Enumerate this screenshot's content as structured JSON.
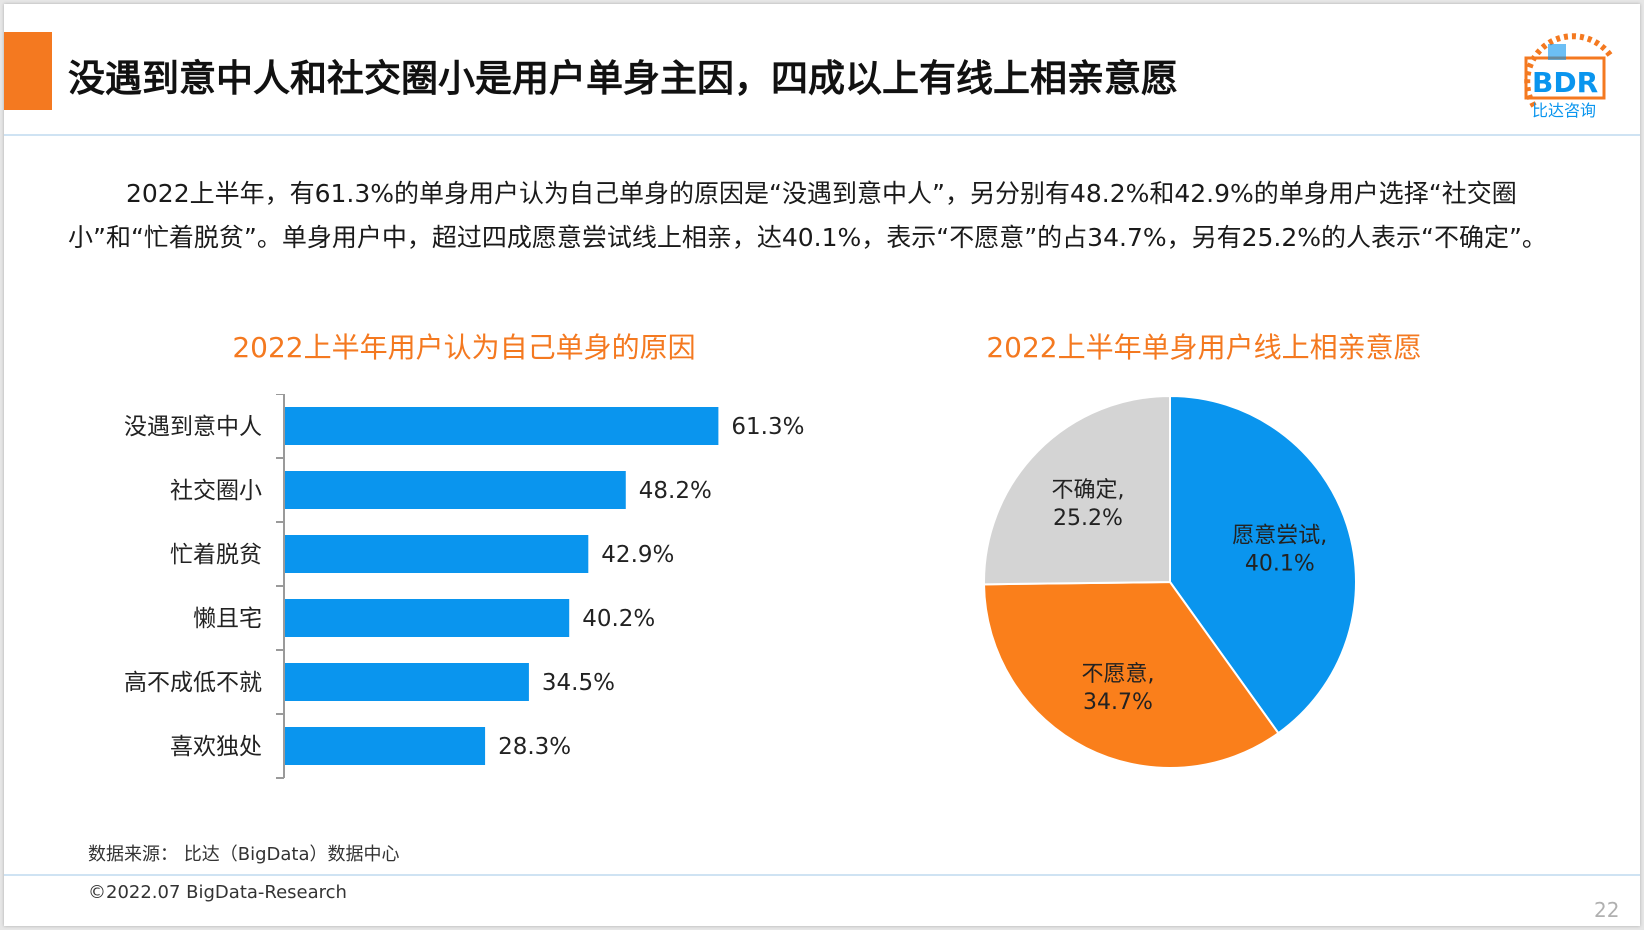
{
  "header": {
    "title": "没遇到意中人和社交圈小是用户单身主因，四成以上有线上相亲意愿",
    "logo_text": "BDR",
    "logo_subtext": "比达咨询"
  },
  "intro_text": "2022上半年，有61.3%的单身用户认为自己单身的原因是“没遇到意中人”，另分别有48.2%和42.9%的单身用户选择“社交圈小”和“忙着脱贫”。单身用户中，超过四成愿意尝试线上相亲，达40.1%，表示“不愿意”的占34.7%，另有25.2%的人表示“不确定”。",
  "chart_data": [
    {
      "type": "bar",
      "orientation": "horizontal",
      "title": "2022上半年用户认为自己单身的原因",
      "categories": [
        "没遇到意中人",
        "社交圈小",
        "忙着脱贫",
        "懒且宅",
        "高不成低不就",
        "喜欢独处"
      ],
      "values": [
        61.3,
        48.2,
        42.9,
        40.2,
        34.5,
        28.3
      ],
      "labels": [
        "61.3%",
        "48.2%",
        "42.9%",
        "40.2%",
        "34.5%",
        "28.3%"
      ],
      "unit": "%",
      "color": "#0a95ee",
      "xlim": [
        0,
        100
      ]
    },
    {
      "type": "pie",
      "title": "2022上半年单身用户线上相亲意愿",
      "slices": [
        {
          "label": "愿意尝试",
          "value": 40.1,
          "display": "40.1%",
          "color": "#0a95ee"
        },
        {
          "label": "不愿意",
          "value": 34.7,
          "display": "34.7%",
          "color": "#fa7f1b"
        },
        {
          "label": "不确定",
          "value": 25.2,
          "display": "25.2%",
          "color": "#d4d4d4"
        }
      ]
    }
  ],
  "footer": {
    "source": "数据来源： 比达（BigData）数据中心",
    "copyright": "©2022.07 BigData-Research",
    "page_number": "22"
  }
}
